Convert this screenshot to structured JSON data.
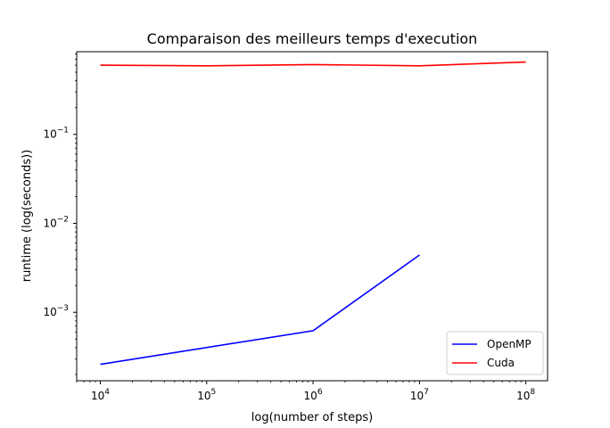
{
  "chart_data": {
    "type": "line",
    "title": "Comparaison des meilleurs temps d'execution",
    "xlabel": "log(number of steps)",
    "ylabel": "runtime (log(seconds))",
    "xscale": "log",
    "yscale": "log",
    "xlim": [
      6000,
      160000000
    ],
    "ylim": [
      0.00017,
      0.85
    ],
    "grid": false,
    "legend_position": "lower right",
    "x_ticks": [
      {
        "value": 10000,
        "base": "10",
        "exp": "4"
      },
      {
        "value": 100000,
        "base": "10",
        "exp": "5"
      },
      {
        "value": 1000000,
        "base": "10",
        "exp": "6"
      },
      {
        "value": 10000000,
        "base": "10",
        "exp": "7"
      },
      {
        "value": 100000000,
        "base": "10",
        "exp": "8"
      }
    ],
    "y_ticks": [
      {
        "value": 0.001,
        "base": "10",
        "exp": "−3"
      },
      {
        "value": 0.01,
        "base": "10",
        "exp": "−2"
      },
      {
        "value": 0.1,
        "base": "10",
        "exp": "−1"
      }
    ],
    "series": [
      {
        "name": "OpenMP",
        "color": "#0000ff",
        "points": [
          {
            "x": 10000,
            "y": 0.00026
          },
          {
            "x": 1000000,
            "y": 0.00062
          },
          {
            "x": 10000000,
            "y": 0.0044
          }
        ]
      },
      {
        "name": "Cuda",
        "color": "#ff0000",
        "points": [
          {
            "x": 10000,
            "y": 0.6
          },
          {
            "x": 100000,
            "y": 0.59
          },
          {
            "x": 1000000,
            "y": 0.61
          },
          {
            "x": 10000000,
            "y": 0.59
          },
          {
            "x": 100000000,
            "y": 0.65
          }
        ]
      }
    ]
  }
}
